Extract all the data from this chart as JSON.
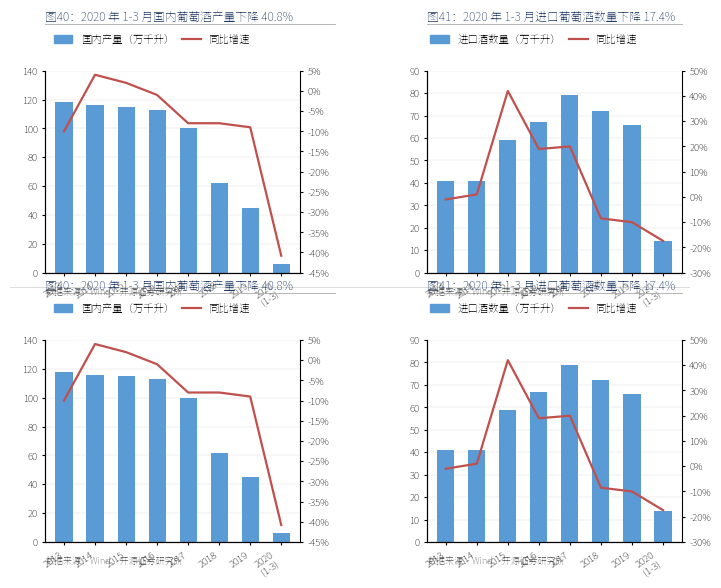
{
  "fig40": {
    "title": "图40：2020 年 1-3 月国内葡萄酒产量下降 40.8%",
    "bar_label": "国内产量（万千升）",
    "line_label": "同比增速",
    "categories": [
      "2013",
      "2014",
      "2015",
      "2016",
      "2017",
      "2018",
      "2019",
      "2020\n(1-3)"
    ],
    "bar_values": [
      118,
      116,
      115,
      113,
      100,
      62,
      45,
      6
    ],
    "line_values": [
      -0.1,
      0.04,
      0.02,
      -0.01,
      -0.08,
      -0.08,
      -0.09,
      -0.408
    ],
    "bar_color": "#5B9BD5",
    "line_color": "#C0504D",
    "yleft_max": 140,
    "yleft_ticks": [
      0,
      20,
      40,
      60,
      80,
      100,
      120,
      140
    ],
    "yright_ticks": [
      0.05,
      0.0,
      -0.05,
      -0.1,
      -0.15,
      -0.2,
      -0.25,
      -0.3,
      -0.35,
      -0.4,
      -0.45
    ],
    "yright_min": -0.45,
    "yright_max": 0.05,
    "source": "数据来源：Wind、开源证券研究所"
  },
  "fig41": {
    "title": "图41：2020 年 1-3 月进口葡萄酒数量下降 17.4%",
    "bar_label": "进口酒数量（万千升）",
    "line_label": "同比增速",
    "categories": [
      "2013",
      "2014",
      "2015",
      "2016",
      "2017",
      "2018",
      "2019",
      "2020\n(1-3)"
    ],
    "bar_values": [
      41,
      41,
      59,
      67,
      79,
      72,
      66,
      14
    ],
    "line_values": [
      -0.01,
      0.01,
      0.42,
      0.19,
      0.2,
      -0.085,
      -0.1,
      -0.174
    ],
    "bar_color": "#5B9BD5",
    "line_color": "#C0504D",
    "yleft_max": 90,
    "yleft_ticks": [
      0,
      10,
      20,
      30,
      40,
      50,
      60,
      70,
      80,
      90
    ],
    "yright_ticks": [
      0.5,
      0.4,
      0.3,
      0.2,
      0.1,
      0.0,
      -0.1,
      -0.2,
      -0.3
    ],
    "yright_min": -0.3,
    "yright_max": 0.5,
    "source": "数据来源：Wind、开源证券研究所"
  },
  "background_color": "#FFFFFF",
  "title_color": "#1F3864",
  "source_color": "#595959",
  "title_fontsize": 8.5,
  "axis_fontsize": 7,
  "legend_fontsize": 7.5,
  "source_fontsize": 6.5
}
